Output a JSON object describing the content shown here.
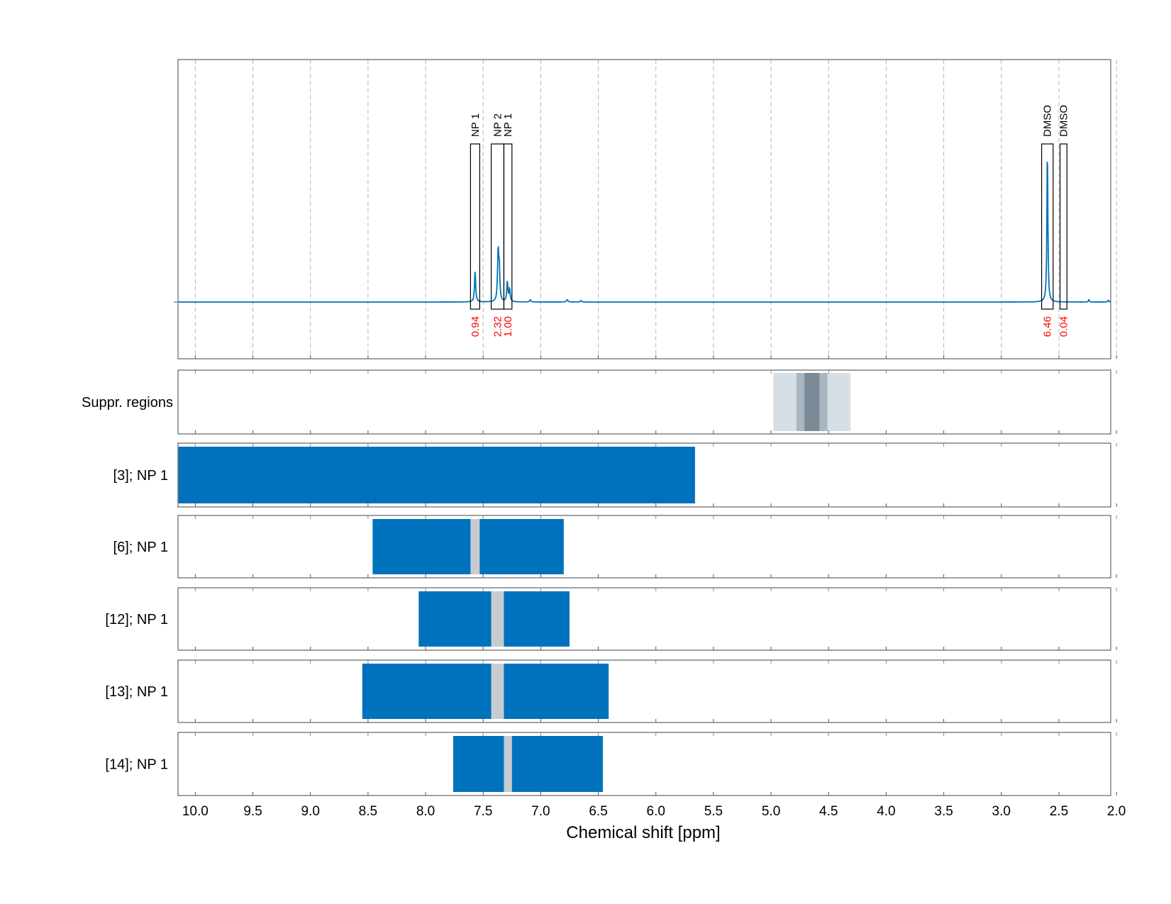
{
  "chart_data": {
    "type": "spectrum",
    "x_label": "Chemical shift [ppm]",
    "x_reversed": true,
    "xlim": [
      10.15,
      2.05
    ],
    "x_ticks": [
      "10.0",
      "9.5",
      "9.0",
      "8.5",
      "8.0",
      "7.5",
      "7.0",
      "6.5",
      "6.0",
      "5.5",
      "5.0",
      "4.5",
      "4.0",
      "3.5",
      "3.0",
      "2.5",
      "2.0"
    ],
    "grid": true,
    "colors": {
      "spectrum": "#0072bd",
      "bar": "#0072bd",
      "gap": "#c8ccd0",
      "integral": "#ff0000",
      "suppr_outer": "#d6dfe6",
      "suppr_inner": "#7a8a97"
    },
    "spectrum": {
      "baseline": 0,
      "peaks": [
        {
          "ppm": 7.57,
          "height": 0.2,
          "width": 0.006
        },
        {
          "ppm": 7.37,
          "height": 0.32,
          "width": 0.006
        },
        {
          "ppm": 7.36,
          "height": 0.2,
          "width": 0.006
        },
        {
          "ppm": 7.29,
          "height": 0.13,
          "width": 0.006
        },
        {
          "ppm": 7.27,
          "height": 0.08,
          "width": 0.006
        },
        {
          "ppm": 7.09,
          "height": 0.015,
          "width": 0.006
        },
        {
          "ppm": 6.77,
          "height": 0.015,
          "width": 0.008
        },
        {
          "ppm": 6.65,
          "height": 0.01,
          "width": 0.006
        },
        {
          "ppm": 2.6,
          "height": 1.0,
          "width": 0.005
        },
        {
          "ppm": 2.24,
          "height": 0.015,
          "width": 0.005
        },
        {
          "ppm": 2.07,
          "height": 0.012,
          "width": 0.005
        }
      ],
      "regions": [
        {
          "label": "NP 1",
          "integral": "0.94",
          "from": 7.61,
          "to": 7.53
        },
        {
          "label": "NP 2",
          "integral": "2.32",
          "from": 7.43,
          "to": 7.32
        },
        {
          "label": "NP 1",
          "integral": "1.00",
          "from": 7.32,
          "to": 7.25
        },
        {
          "label": "DMSO",
          "integral": "6.46",
          "from": 2.65,
          "to": 2.55
        },
        {
          "label": "DMSO",
          "integral": "0.04",
          "from": 2.49,
          "to": 2.43
        }
      ]
    },
    "suppression": {
      "label": "Suppr. regions",
      "outer": [
        4.98,
        4.31
      ],
      "middle": [
        4.78,
        4.51
      ],
      "inner": [
        4.71,
        4.58
      ]
    },
    "lanes": [
      {
        "label": "[3]; NP 1",
        "range": [
          10.15,
          5.66
        ],
        "gaps": []
      },
      {
        "label": "[6]; NP 1",
        "range": [
          8.46,
          6.8
        ],
        "gaps": [
          [
            7.61,
            7.53
          ]
        ]
      },
      {
        "label": "[12]; NP 1",
        "range": [
          8.06,
          6.75
        ],
        "gaps": [
          [
            7.43,
            7.32
          ]
        ]
      },
      {
        "label": "[13]; NP 1",
        "range": [
          8.55,
          6.41
        ],
        "gaps": [
          [
            7.43,
            7.32
          ]
        ]
      },
      {
        "label": "[14]; NP 1",
        "range": [
          7.76,
          6.46
        ],
        "gaps": [
          [
            7.32,
            7.25
          ]
        ]
      }
    ]
  }
}
